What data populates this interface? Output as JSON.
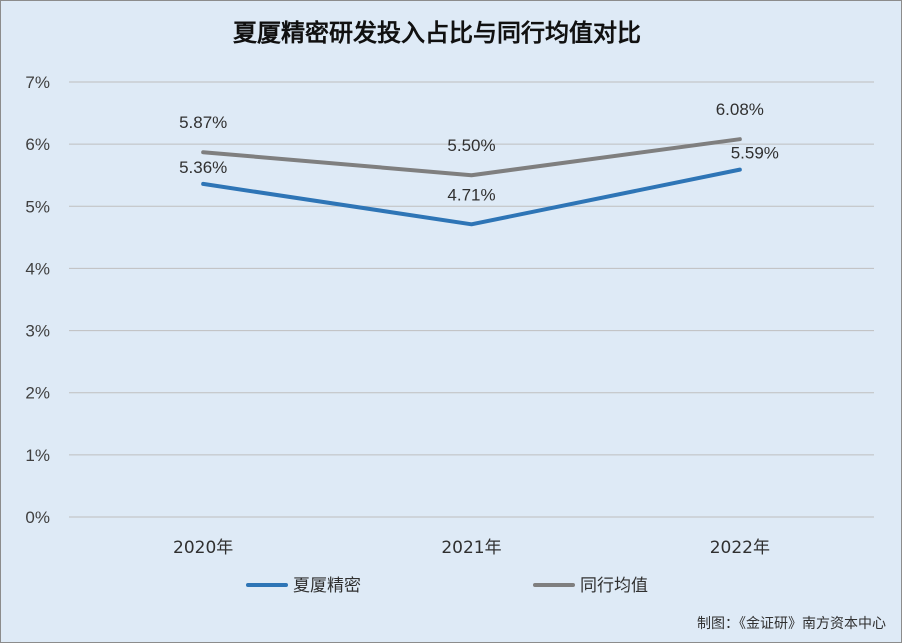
{
  "chart_data": {
    "type": "line",
    "title": "夏厦精密研发投入占比与同行均值对比",
    "categories": [
      "2020年",
      "2021年",
      "2022年"
    ],
    "y_ticks": [
      "0%",
      "1%",
      "2%",
      "3%",
      "4%",
      "5%",
      "6%",
      "7%"
    ],
    "ylim": [
      0,
      7
    ],
    "grid": true,
    "legend_position": "bottom",
    "series": [
      {
        "name": "夏厦精密",
        "values": [
          5.36,
          4.71,
          5.59
        ],
        "labels": [
          "5.36%",
          "4.71%",
          "5.59%"
        ],
        "color": "#2e75b6"
      },
      {
        "name": "同行均值",
        "values": [
          5.87,
          5.5,
          6.08
        ],
        "labels": [
          "5.87%",
          "5.50%",
          "6.08%"
        ],
        "color": "#7f7f7f"
      }
    ]
  },
  "footer": {
    "credit": "制图：《金证研》南方资本中心"
  },
  "colors": {
    "background": "#deeaf6",
    "gridline": "#bfbfbf"
  }
}
